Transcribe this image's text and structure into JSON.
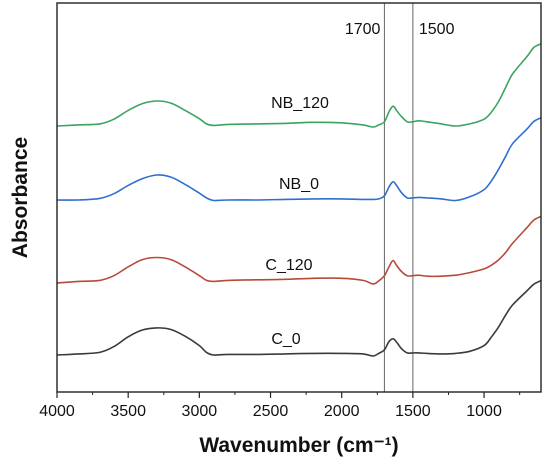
{
  "chart_data": {
    "type": "line",
    "title": "",
    "xlabel": "Wavenumber (cm⁻¹)",
    "ylabel": "Absorbance",
    "xlim": [
      4000,
      600
    ],
    "x_reversed": true,
    "y_ticks_shown": false,
    "grid": false,
    "legend": "none (series labelled inline above curves)",
    "x_ticks": [
      4000,
      3500,
      3000,
      2500,
      2000,
      1500,
      1000
    ],
    "x_tick_labels": [
      "4000",
      "3500",
      "3000",
      "2500",
      "2000",
      "1500",
      "1000"
    ],
    "reference_lines": [
      {
        "x": 1700,
        "label": "1700"
      },
      {
        "x": 1500,
        "label": "1500"
      }
    ],
    "stacked_offset": true,
    "series": [
      {
        "name": "NB_120",
        "color": "#3aa460",
        "points": [
          [
            4000,
            0.02
          ],
          [
            3850,
            0.04
          ],
          [
            3700,
            0.06
          ],
          [
            3600,
            0.15
          ],
          [
            3500,
            0.32
          ],
          [
            3400,
            0.45
          ],
          [
            3300,
            0.5
          ],
          [
            3200,
            0.46
          ],
          [
            3100,
            0.32
          ],
          [
            3000,
            0.16
          ],
          [
            2950,
            0.06
          ],
          [
            2900,
            0.03
          ],
          [
            2800,
            0.05
          ],
          [
            2600,
            0.06
          ],
          [
            2400,
            0.07
          ],
          [
            2200,
            0.09
          ],
          [
            2000,
            0.08
          ],
          [
            1850,
            0.04
          ],
          [
            1780,
            0.0
          ],
          [
            1740,
            0.04
          ],
          [
            1700,
            0.1
          ],
          [
            1670,
            0.28
          ],
          [
            1640,
            0.4
          ],
          [
            1615,
            0.32
          ],
          [
            1580,
            0.2
          ],
          [
            1540,
            0.1
          ],
          [
            1500,
            0.1
          ],
          [
            1460,
            0.12
          ],
          [
            1400,
            0.1
          ],
          [
            1300,
            0.06
          ],
          [
            1200,
            0.02
          ],
          [
            1100,
            0.06
          ],
          [
            1000,
            0.15
          ],
          [
            950,
            0.28
          ],
          [
            900,
            0.48
          ],
          [
            850,
            0.75
          ],
          [
            800,
            1.02
          ],
          [
            700,
            1.35
          ],
          [
            650,
            1.53
          ],
          [
            600,
            1.6
          ]
        ]
      },
      {
        "name": "NB_0",
        "color": "#2f6fd0",
        "points": [
          [
            4000,
            0.02
          ],
          [
            3850,
            0.02
          ],
          [
            3700,
            0.05
          ],
          [
            3600,
            0.14
          ],
          [
            3500,
            0.3
          ],
          [
            3400,
            0.43
          ],
          [
            3300,
            0.5
          ],
          [
            3200,
            0.46
          ],
          [
            3100,
            0.32
          ],
          [
            3000,
            0.15
          ],
          [
            2950,
            0.06
          ],
          [
            2900,
            0.01
          ],
          [
            2800,
            0.02
          ],
          [
            2600,
            0.02
          ],
          [
            2400,
            0.03
          ],
          [
            2200,
            0.04
          ],
          [
            2000,
            0.04
          ],
          [
            1850,
            0.03
          ],
          [
            1780,
            0.03
          ],
          [
            1740,
            0.04
          ],
          [
            1700,
            0.1
          ],
          [
            1670,
            0.26
          ],
          [
            1640,
            0.37
          ],
          [
            1615,
            0.3
          ],
          [
            1580,
            0.16
          ],
          [
            1540,
            0.06
          ],
          [
            1500,
            0.06
          ],
          [
            1460,
            0.07
          ],
          [
            1400,
            0.06
          ],
          [
            1300,
            0.04
          ],
          [
            1200,
            0.01
          ],
          [
            1100,
            0.08
          ],
          [
            1000,
            0.22
          ],
          [
            950,
            0.38
          ],
          [
            900,
            0.6
          ],
          [
            850,
            0.85
          ],
          [
            800,
            1.1
          ],
          [
            700,
            1.38
          ],
          [
            650,
            1.53
          ],
          [
            600,
            1.6
          ]
        ]
      },
      {
        "name": "C_120",
        "color": "#b84a3a",
        "points": [
          [
            4000,
            0.02
          ],
          [
            3850,
            0.05
          ],
          [
            3700,
            0.07
          ],
          [
            3600,
            0.16
          ],
          [
            3500,
            0.33
          ],
          [
            3400,
            0.47
          ],
          [
            3300,
            0.51
          ],
          [
            3200,
            0.47
          ],
          [
            3100,
            0.33
          ],
          [
            3000,
            0.16
          ],
          [
            2950,
            0.07
          ],
          [
            2900,
            0.05
          ],
          [
            2800,
            0.07
          ],
          [
            2600,
            0.08
          ],
          [
            2400,
            0.09
          ],
          [
            2200,
            0.11
          ],
          [
            2000,
            0.11
          ],
          [
            1850,
            0.07
          ],
          [
            1780,
            0.0
          ],
          [
            1740,
            0.06
          ],
          [
            1700,
            0.16
          ],
          [
            1670,
            0.32
          ],
          [
            1640,
            0.45
          ],
          [
            1615,
            0.36
          ],
          [
            1580,
            0.24
          ],
          [
            1540,
            0.16
          ],
          [
            1500,
            0.16
          ],
          [
            1460,
            0.17
          ],
          [
            1400,
            0.15
          ],
          [
            1300,
            0.15
          ],
          [
            1200,
            0.17
          ],
          [
            1100,
            0.22
          ],
          [
            1000,
            0.29
          ],
          [
            950,
            0.36
          ],
          [
            900,
            0.46
          ],
          [
            850,
            0.6
          ],
          [
            800,
            0.78
          ],
          [
            700,
            1.08
          ],
          [
            650,
            1.23
          ],
          [
            600,
            1.3
          ]
        ]
      },
      {
        "name": "C_0",
        "color": "#3a3a3a",
        "points": [
          [
            4000,
            0.02
          ],
          [
            3850,
            0.04
          ],
          [
            3700,
            0.07
          ],
          [
            3600,
            0.18
          ],
          [
            3500,
            0.37
          ],
          [
            3400,
            0.5
          ],
          [
            3300,
            0.54
          ],
          [
            3200,
            0.51
          ],
          [
            3100,
            0.38
          ],
          [
            3000,
            0.2
          ],
          [
            2950,
            0.07
          ],
          [
            2900,
            0.02
          ],
          [
            2800,
            0.03
          ],
          [
            2600,
            0.03
          ],
          [
            2400,
            0.04
          ],
          [
            2200,
            0.05
          ],
          [
            2000,
            0.05
          ],
          [
            1850,
            0.04
          ],
          [
            1780,
            0.0
          ],
          [
            1740,
            0.05
          ],
          [
            1700,
            0.12
          ],
          [
            1670,
            0.27
          ],
          [
            1640,
            0.33
          ],
          [
            1615,
            0.27
          ],
          [
            1580,
            0.14
          ],
          [
            1540,
            0.06
          ],
          [
            1500,
            0.06
          ],
          [
            1460,
            0.06
          ],
          [
            1400,
            0.05
          ],
          [
            1300,
            0.04
          ],
          [
            1200,
            0.05
          ],
          [
            1100,
            0.09
          ],
          [
            1000,
            0.2
          ],
          [
            950,
            0.36
          ],
          [
            900,
            0.55
          ],
          [
            850,
            0.78
          ],
          [
            800,
            0.98
          ],
          [
            700,
            1.25
          ],
          [
            650,
            1.38
          ],
          [
            600,
            1.45
          ]
        ]
      }
    ]
  }
}
